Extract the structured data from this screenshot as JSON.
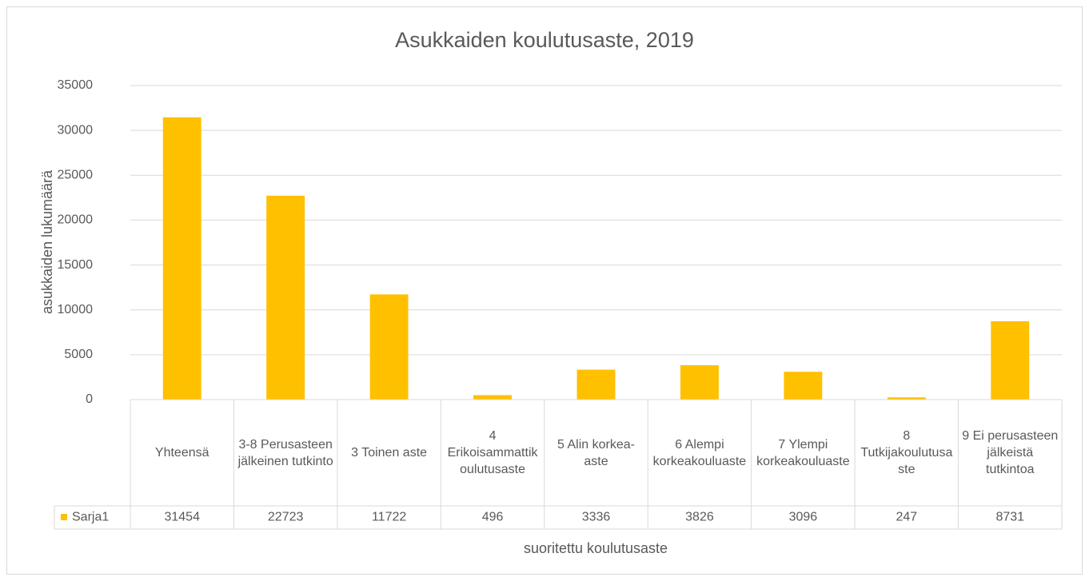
{
  "chart_data": {
    "type": "bar",
    "title": "Asukkaiden koulutusaste, 2019",
    "y_label": "asukkaiden lukumäärä",
    "x_label": "suoritettu koulutusaste",
    "categories": [
      "Yhteensä",
      "3-8 Perusasteen jälkeinen tutkinto",
      "3 Toinen aste",
      "4 Erikoisammattikoulutusaste",
      "5 Alin korkea-aste",
      "6 Alempi korkeakouluaste",
      "7 Ylempi korkeakouluaste",
      "8 Tutkijakoulutusaste",
      "9 Ei perusasteen jälkeistä tutkintoa"
    ],
    "series": [
      {
        "name": "Sarja1",
        "color": "#ffc000",
        "values": [
          31454,
          22723,
          11722,
          496,
          3336,
          3826,
          3096,
          247,
          8731
        ]
      }
    ],
    "ylim": [
      0,
      35000
    ],
    "yticks": [
      0,
      5000,
      10000,
      15000,
      20000,
      25000,
      30000,
      35000
    ],
    "grid": true,
    "data_table": true
  }
}
